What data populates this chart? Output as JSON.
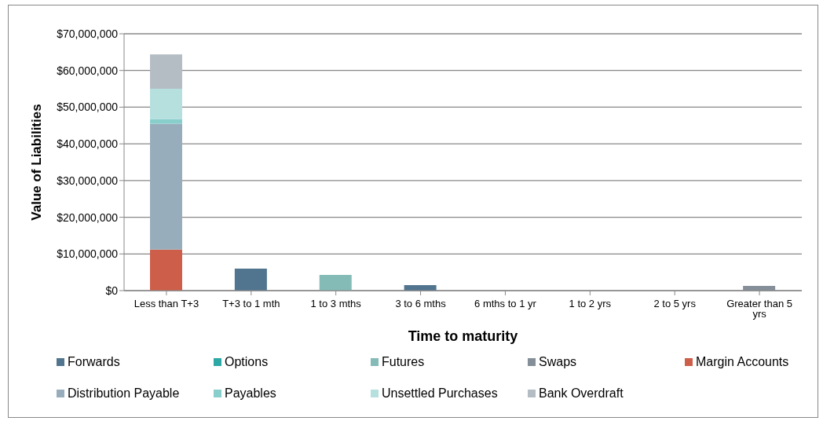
{
  "chart_data": {
    "type": "bar",
    "stacked": true,
    "xlabel": "Time to maturity",
    "ylabel": "Value of Liabilities",
    "categories": [
      "Less than T+3",
      "T+3 to 1 mth",
      "1 to 3 mths",
      "3 to 6 mths",
      "6 mths to 1 yr",
      "1 to 2 yrs",
      "2 to 5 yrs",
      "Greater than 5 yrs"
    ],
    "series": [
      {
        "name": "Forwards",
        "color": "#51758e",
        "values": [
          0,
          6000000,
          0,
          1500000,
          0,
          0,
          0,
          0
        ]
      },
      {
        "name": "Options",
        "color": "#2ea8a5",
        "values": [
          0,
          0,
          0,
          0,
          0,
          0,
          0,
          0
        ]
      },
      {
        "name": "Futures",
        "color": "#85bbb7",
        "values": [
          0,
          0,
          4300000,
          0,
          0,
          0,
          0,
          0
        ]
      },
      {
        "name": "Swaps",
        "color": "#858f99",
        "values": [
          0,
          0,
          0,
          0,
          0,
          0,
          0,
          1300000
        ]
      },
      {
        "name": "Margin Accounts",
        "color": "#cd5f4a",
        "values": [
          11200000,
          0,
          0,
          0,
          0,
          0,
          0,
          0
        ]
      },
      {
        "name": "Distribution Payable",
        "color": "#98adbb",
        "values": [
          34300000,
          0,
          0,
          0,
          0,
          0,
          0,
          0
        ]
      },
      {
        "name": "Payables",
        "color": "#88cfcc",
        "values": [
          1300000,
          0,
          0,
          0,
          0,
          0,
          0,
          0
        ]
      },
      {
        "name": "Unsettled Purchases",
        "color": "#b5e0de",
        "values": [
          8200000,
          0,
          0,
          0,
          0,
          0,
          0,
          0
        ]
      },
      {
        "name": "Bank Overdraft",
        "color": "#b5bdc4",
        "values": [
          9400000,
          0,
          0,
          0,
          0,
          0,
          0,
          0
        ]
      }
    ],
    "ylim": [
      0,
      70000000
    ],
    "yticks": [
      {
        "value": 0,
        "label": "$0"
      },
      {
        "value": 10000000,
        "label": "$10,000,000"
      },
      {
        "value": 20000000,
        "label": "$20,000,000"
      },
      {
        "value": 30000000,
        "label": "$30,000,000"
      },
      {
        "value": 40000000,
        "label": "$40,000,000"
      },
      {
        "value": 50000000,
        "label": "$50,000,000"
      },
      {
        "value": 60000000,
        "label": "$60,000,000"
      },
      {
        "value": 70000000,
        "label": "$70,000,000"
      }
    ],
    "grid": "y",
    "legend": "bottom"
  }
}
